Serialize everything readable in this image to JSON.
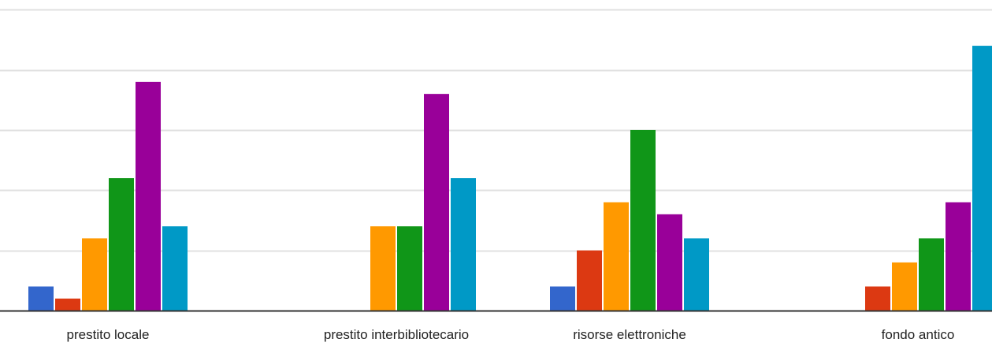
{
  "chart_data": {
    "type": "bar",
    "categories": [
      "prestito locale",
      "prestito interbibliotecario",
      "risorse elettroniche",
      "fondo antico"
    ],
    "series": [
      {
        "color": "#3366cc",
        "values": [
          2,
          0,
          2,
          0
        ]
      },
      {
        "color": "#dc3912",
        "values": [
          1,
          0,
          5,
          2
        ]
      },
      {
        "color": "#ff9900",
        "values": [
          6,
          7,
          9,
          4
        ]
      },
      {
        "color": "#109618",
        "values": [
          11,
          7,
          15,
          6
        ]
      },
      {
        "color": "#990099",
        "values": [
          19,
          18,
          8,
          9
        ]
      },
      {
        "color": "#0099c6",
        "values": [
          7,
          11,
          6,
          22
        ]
      }
    ],
    "ylim": [
      0,
      25
    ],
    "yticks": [
      0,
      5,
      10,
      15,
      20,
      25
    ],
    "grid": true,
    "legend": "none"
  }
}
